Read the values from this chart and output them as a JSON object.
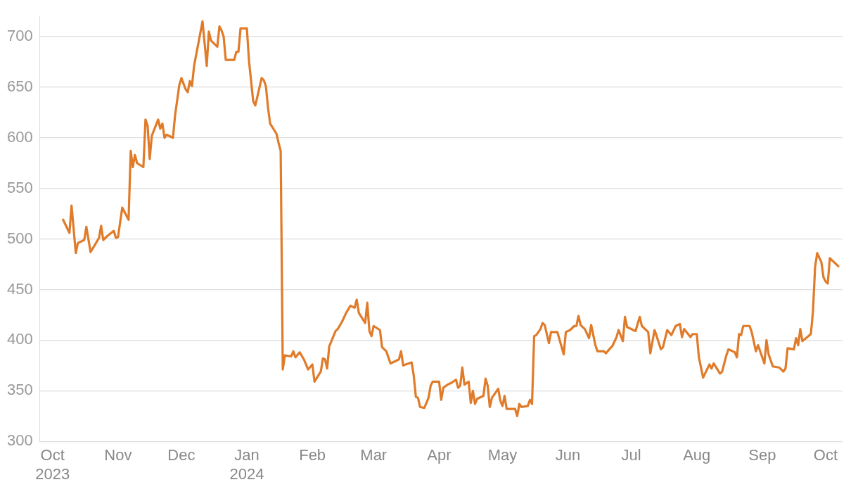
{
  "chart_data": {
    "type": "line",
    "marker": "none",
    "grid": "y",
    "legend": false,
    "xlim": [
      "2023-09-25",
      "2024-10-09"
    ],
    "xticks": [
      {
        "value": "2023-10-01",
        "label": "Oct\n2023"
      },
      {
        "value": "2023-11-01",
        "label": "Nov"
      },
      {
        "value": "2023-12-01",
        "label": "Dec"
      },
      {
        "value": "2024-01-01",
        "label": "Jan\n2024"
      },
      {
        "value": "2024-02-01",
        "label": "Feb"
      },
      {
        "value": "2024-03-01",
        "label": "Mar"
      },
      {
        "value": "2024-04-01",
        "label": "Apr"
      },
      {
        "value": "2024-05-01",
        "label": "May"
      },
      {
        "value": "2024-06-01",
        "label": "Jun"
      },
      {
        "value": "2024-07-01",
        "label": "Jul"
      },
      {
        "value": "2024-08-01",
        "label": "Aug"
      },
      {
        "value": "2024-09-01",
        "label": "Sep"
      },
      {
        "value": "2024-10-01",
        "label": "Oct"
      }
    ],
    "ylim": [
      300,
      720
    ],
    "yticks": [
      300,
      350,
      400,
      450,
      500,
      550,
      600,
      650,
      700
    ],
    "series": [
      {
        "color": "#e07b2a",
        "x": [
          "2023-10-06",
          "2023-10-09",
          "2023-10-10",
          "2023-10-12",
          "2023-10-13",
          "2023-10-16",
          "2023-10-17",
          "2023-10-19",
          "2023-10-23",
          "2023-10-24",
          "2023-10-25",
          "2023-10-27",
          "2023-10-30",
          "2023-10-31",
          "2023-11-01",
          "2023-11-03",
          "2023-11-06",
          "2023-11-07",
          "2023-11-08",
          "2023-11-09",
          "2023-11-10",
          "2023-11-13",
          "2023-11-14",
          "2023-11-15",
          "2023-11-16",
          "2023-11-17",
          "2023-11-20",
          "2023-11-21",
          "2023-11-22",
          "2023-11-23",
          "2023-11-24",
          "2023-11-27",
          "2023-11-28",
          "2023-11-30",
          "2023-12-01",
          "2023-12-03",
          "2023-12-04",
          "2023-12-05",
          "2023-12-06",
          "2023-12-07",
          "2023-12-11",
          "2023-12-13",
          "2023-12-14",
          "2023-12-15",
          "2023-12-18",
          "2023-12-19",
          "2023-12-20",
          "2023-12-21",
          "2023-12-22",
          "2023-12-26",
          "2023-12-27",
          "2023-12-28",
          "2023-12-29",
          "2024-01-01",
          "2024-01-02",
          "2024-01-04",
          "2024-01-05",
          "2024-01-08",
          "2024-01-09",
          "2024-01-10",
          "2024-01-11",
          "2024-01-12",
          "2024-01-15",
          "2024-01-16",
          "2024-01-17",
          "2024-01-18",
          "2024-01-19",
          "2024-01-22",
          "2024-01-23",
          "2024-01-24",
          "2024-01-26",
          "2024-01-28",
          "2024-01-30",
          "2024-02-01",
          "2024-02-02",
          "2024-02-05",
          "2024-02-06",
          "2024-02-07",
          "2024-02-08",
          "2024-02-09",
          "2024-02-12",
          "2024-02-13",
          "2024-02-15",
          "2024-02-17",
          "2024-02-19",
          "2024-02-21",
          "2024-02-22",
          "2024-02-23",
          "2024-02-26",
          "2024-02-27",
          "2024-02-28",
          "2024-02-29",
          "2024-03-01",
          "2024-03-04",
          "2024-03-05",
          "2024-03-07",
          "2024-03-09",
          "2024-03-13",
          "2024-03-14",
          "2024-03-15",
          "2024-03-19",
          "2024-03-20",
          "2024-03-21",
          "2024-03-22",
          "2024-03-23",
          "2024-03-25",
          "2024-03-27",
          "2024-03-28",
          "2024-03-29",
          "2024-04-01",
          "2024-04-02",
          "2024-04-03",
          "2024-04-05",
          "2024-04-07",
          "2024-04-09",
          "2024-04-10",
          "2024-04-11",
          "2024-04-12",
          "2024-04-13",
          "2024-04-15",
          "2024-04-16",
          "2024-04-17",
          "2024-04-18",
          "2024-04-19",
          "2024-04-22",
          "2024-04-23",
          "2024-04-24",
          "2024-04-25",
          "2024-04-26",
          "2024-04-29",
          "2024-04-30",
          "2024-05-01",
          "2024-05-02",
          "2024-05-03",
          "2024-05-07",
          "2024-05-08",
          "2024-05-09",
          "2024-05-10",
          "2024-05-13",
          "2024-05-14",
          "2024-05-15",
          "2024-05-16",
          "2024-05-17",
          "2024-05-19",
          "2024-05-20",
          "2024-05-21",
          "2024-05-23",
          "2024-05-24",
          "2024-05-27",
          "2024-05-30",
          "2024-05-31",
          "2024-06-02",
          "2024-06-04",
          "2024-06-05",
          "2024-06-06",
          "2024-06-07",
          "2024-06-09",
          "2024-06-11",
          "2024-06-12",
          "2024-06-14",
          "2024-06-15",
          "2024-06-18",
          "2024-06-19",
          "2024-06-21",
          "2024-06-22",
          "2024-06-24",
          "2024-06-25",
          "2024-06-27",
          "2024-06-28",
          "2024-06-29",
          "2024-07-03",
          "2024-07-05",
          "2024-07-06",
          "2024-07-09",
          "2024-07-10",
          "2024-07-12",
          "2024-07-13",
          "2024-07-15",
          "2024-07-16",
          "2024-07-18",
          "2024-07-20",
          "2024-07-22",
          "2024-07-24",
          "2024-07-25",
          "2024-07-26",
          "2024-07-29",
          "2024-07-30",
          "2024-08-01",
          "2024-08-02",
          "2024-08-04",
          "2024-08-07",
          "2024-08-08",
          "2024-08-09",
          "2024-08-12",
          "2024-08-13",
          "2024-08-15",
          "2024-08-16",
          "2024-08-19",
          "2024-08-20",
          "2024-08-21",
          "2024-08-22",
          "2024-08-23",
          "2024-08-26",
          "2024-08-27",
          "2024-08-29",
          "2024-08-30",
          "2024-09-02",
          "2024-09-03",
          "2024-09-04",
          "2024-09-06",
          "2024-09-09",
          "2024-09-11",
          "2024-09-12",
          "2024-09-13",
          "2024-09-16",
          "2024-09-17",
          "2024-09-18",
          "2024-09-19",
          "2024-09-20",
          "2024-09-24",
          "2024-09-25",
          "2024-09-26",
          "2024-09-27",
          "2024-09-29",
          "2024-09-30",
          "2024-10-01",
          "2024-10-02",
          "2024-10-03",
          "2024-10-07"
        ],
        "values": [
          519,
          506,
          533,
          486,
          496,
          499,
          512,
          487,
          501,
          513,
          499,
          503,
          508,
          501,
          502,
          531,
          519,
          587,
          571,
          583,
          575,
          571,
          618,
          612,
          579,
          602,
          618,
          609,
          614,
          600,
          603,
          600,
          622,
          652,
          659,
          648,
          645,
          656,
          651,
          671,
          715,
          671,
          705,
          696,
          690,
          710,
          706,
          700,
          677,
          677,
          685,
          685,
          708,
          708,
          676,
          636,
          632,
          659,
          657,
          651,
          630,
          614,
          604,
          595,
          587,
          371,
          385,
          384,
          389,
          383,
          388,
          381,
          371,
          376,
          359,
          369,
          382,
          381,
          372,
          394,
          409,
          411,
          418,
          427,
          434,
          432,
          440,
          427,
          417,
          437,
          409,
          404,
          414,
          410,
          393,
          389,
          377,
          381,
          389,
          375,
          378,
          365,
          344,
          343,
          334,
          333,
          343,
          355,
          359,
          359,
          341,
          353,
          356,
          358,
          361,
          353,
          355,
          373,
          356,
          359,
          338,
          350,
          337,
          342,
          345,
          362,
          355,
          334,
          343,
          352,
          340,
          335,
          345,
          332,
          332,
          325,
          337,
          334,
          335,
          341,
          337,
          404,
          405,
          411,
          417,
          415,
          397,
          408,
          408,
          386,
          408,
          410,
          414,
          414,
          424,
          415,
          411,
          402,
          415,
          395,
          389,
          389,
          387,
          392,
          394,
          403,
          410,
          399,
          423,
          413,
          409,
          423,
          414,
          408,
          387,
          410,
          404,
          391,
          393,
          410,
          405,
          414,
          416,
          403,
          411,
          403,
          406,
          406,
          383,
          363,
          376,
          372,
          377,
          367,
          369,
          385,
          391,
          388,
          383,
          406,
          405,
          414,
          414,
          408,
          389,
          395,
          377,
          400,
          386,
          374,
          373,
          369,
          372,
          392,
          391,
          402,
          395,
          411,
          399,
          406,
          428,
          472,
          486,
          477,
          462,
          458,
          456,
          481,
          473
        ]
      }
    ]
  }
}
